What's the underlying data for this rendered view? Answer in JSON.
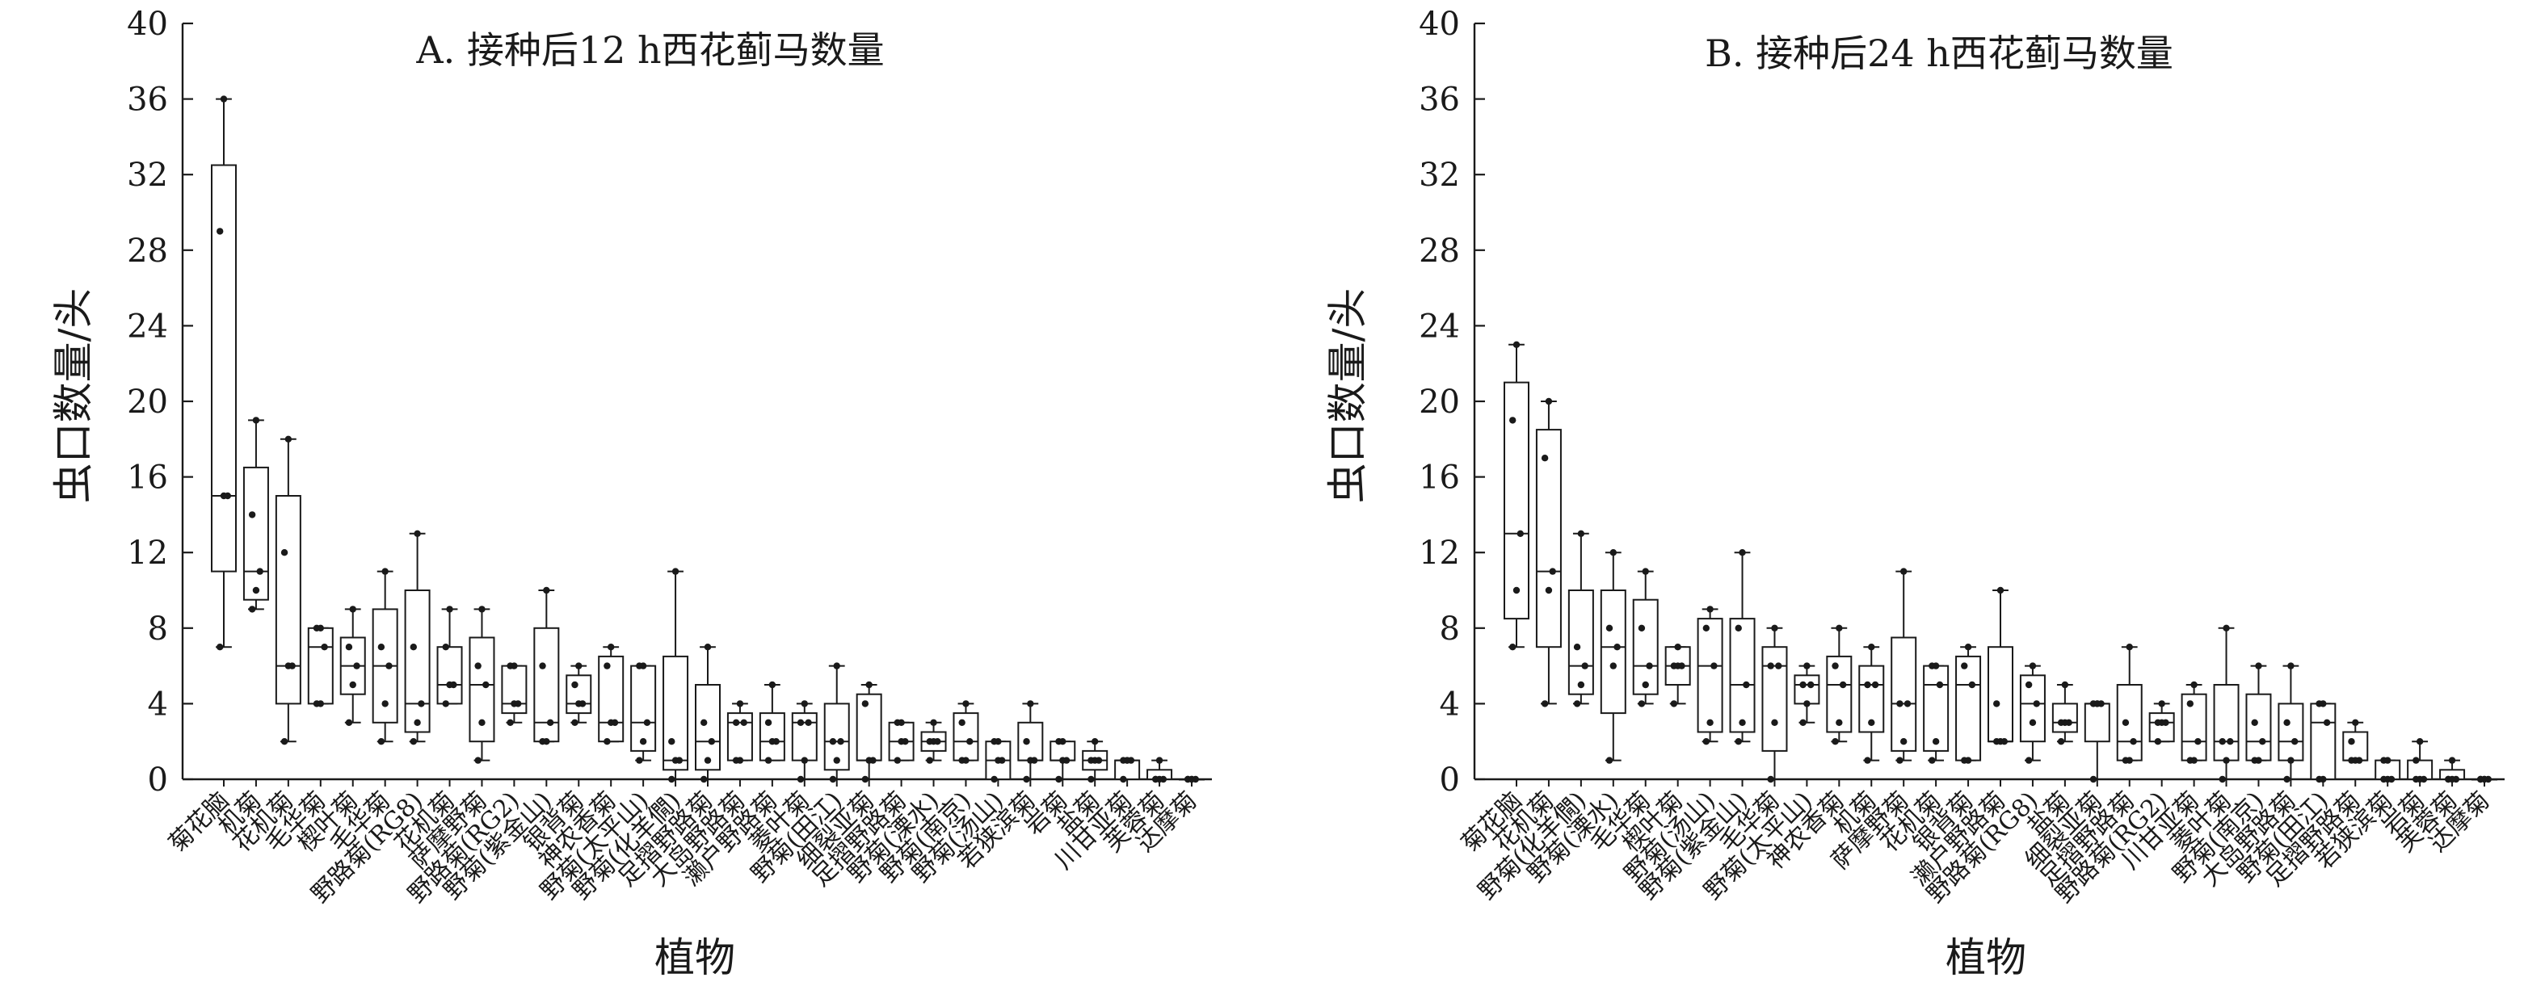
{
  "chart_data": [
    {
      "type": "box",
      "title": "A. 接种后12 h西花蓟马数量",
      "xlabel": "植物",
      "ylabel": "虫口数量/头",
      "ylim": [
        0,
        40
      ],
      "yticks": [
        0,
        4,
        8,
        12,
        16,
        20,
        24,
        28,
        32,
        36,
        40
      ],
      "grid": false,
      "categories": [
        "菊花脑",
        "机菊",
        "花机菊",
        "毛华菊",
        "楔叶菊",
        "毛华菊",
        "野路菊(RG8)",
        "花机菊",
        "萨摩野菊",
        "野路菊(RG2)",
        "野菊(紫金山)",
        "银背菊",
        "神农香菊",
        "野菊(太平山)",
        "野菊(化羊僩)",
        "足摺野路菊",
        "大岛野路菊",
        "濑户野路菊",
        "菱叶菊",
        "野菊(田江)",
        "细裂亚菊",
        "足摺野路菊",
        "野菊(溧水)",
        "野菊(南京)",
        "野菊(汤山)",
        "若狭滨菊",
        "岩菊",
        "盐菊",
        "川甘亚菊",
        "芙蓉菊",
        "达摩菊"
      ],
      "boxes": [
        {
          "min": 7,
          "q1": 11,
          "median": 15,
          "q3": 32.5,
          "max": 36,
          "points": [
            7,
            15,
            15,
            29,
            36
          ]
        },
        {
          "min": 9,
          "q1": 9.5,
          "median": 11,
          "q3": 16.5,
          "max": 19,
          "points": [
            9,
            10,
            11,
            14,
            19
          ]
        },
        {
          "min": 2,
          "q1": 4,
          "median": 6,
          "q3": 15,
          "max": 18,
          "points": [
            2,
            6,
            6,
            12,
            18
          ]
        },
        {
          "min": 4,
          "q1": 4,
          "median": 7,
          "q3": 8,
          "max": 8,
          "points": [
            4,
            4,
            7,
            8,
            8
          ]
        },
        {
          "min": 3,
          "q1": 4.5,
          "median": 6,
          "q3": 7.5,
          "max": 9,
          "points": [
            3,
            5,
            6,
            7,
            9
          ]
        },
        {
          "min": 2,
          "q1": 3,
          "median": 6,
          "q3": 9,
          "max": 11,
          "points": [
            2,
            4,
            6,
            7,
            11
          ]
        },
        {
          "min": 2,
          "q1": 2.5,
          "median": 4,
          "q3": 10,
          "max": 13,
          "points": [
            2,
            3,
            4,
            7,
            13
          ]
        },
        {
          "min": 4,
          "q1": 4,
          "median": 5,
          "q3": 7,
          "max": 9,
          "points": [
            4,
            5,
            5,
            7,
            9
          ]
        },
        {
          "min": 1,
          "q1": 2,
          "median": 5,
          "q3": 7.5,
          "max": 9,
          "points": [
            1,
            3,
            5,
            6,
            9
          ]
        },
        {
          "min": 3,
          "q1": 3.5,
          "median": 4,
          "q3": 6,
          "max": 6,
          "points": [
            3,
            4,
            4,
            6,
            6
          ]
        },
        {
          "min": 2,
          "q1": 2,
          "median": 3,
          "q3": 8,
          "max": 10,
          "points": [
            2,
            2,
            3,
            6,
            10
          ]
        },
        {
          "min": 3,
          "q1": 3.5,
          "median": 4,
          "q3": 5.5,
          "max": 6,
          "points": [
            3,
            4,
            4,
            5,
            6
          ]
        },
        {
          "min": 2,
          "q1": 2,
          "median": 3,
          "q3": 6.5,
          "max": 7,
          "points": [
            2,
            3,
            3,
            6,
            7
          ]
        },
        {
          "min": 1,
          "q1": 1.5,
          "median": 3,
          "q3": 6,
          "max": 6,
          "points": [
            1,
            2,
            3,
            6,
            6
          ]
        },
        {
          "min": 0,
          "q1": 0.5,
          "median": 1,
          "q3": 6.5,
          "max": 11,
          "points": [
            0,
            1,
            1,
            2,
            11
          ]
        },
        {
          "min": 0,
          "q1": 0.5,
          "median": 2,
          "q3": 5,
          "max": 7,
          "points": [
            0,
            1,
            2,
            3,
            7
          ]
        },
        {
          "min": 1,
          "q1": 1,
          "median": 3,
          "q3": 3.5,
          "max": 4,
          "points": [
            1,
            1,
            3,
            3,
            4
          ]
        },
        {
          "min": 1,
          "q1": 1,
          "median": 2,
          "q3": 3.5,
          "max": 5,
          "points": [
            1,
            2,
            2,
            3,
            5
          ]
        },
        {
          "min": 0,
          "q1": 1,
          "median": 3,
          "q3": 3.5,
          "max": 4,
          "points": [
            0,
            1,
            3,
            3,
            4
          ]
        },
        {
          "min": 0,
          "q1": 0.5,
          "median": 2,
          "q3": 4,
          "max": 6,
          "points": [
            0,
            1,
            2,
            2,
            6
          ]
        },
        {
          "min": 0,
          "q1": 1,
          "median": 1,
          "q3": 4.5,
          "max": 5,
          "points": [
            0,
            1,
            1,
            4,
            5
          ]
        },
        {
          "min": 1,
          "q1": 1,
          "median": 2,
          "q3": 3,
          "max": 3,
          "points": [
            1,
            2,
            2,
            3,
            3
          ]
        },
        {
          "min": 1,
          "q1": 1.5,
          "median": 2,
          "q3": 2.5,
          "max": 3,
          "points": [
            1,
            2,
            2,
            2,
            3
          ]
        },
        {
          "min": 1,
          "q1": 1,
          "median": 2,
          "q3": 3.5,
          "max": 4,
          "points": [
            1,
            1,
            2,
            3,
            4
          ]
        },
        {
          "min": 0,
          "q1": 0,
          "median": 1,
          "q3": 2,
          "max": 2,
          "points": [
            0,
            1,
            1,
            2,
            2
          ]
        },
        {
          "min": 0,
          "q1": 1,
          "median": 1,
          "q3": 3,
          "max": 4,
          "points": [
            0,
            1,
            1,
            2,
            4
          ]
        },
        {
          "min": 0,
          "q1": 1,
          "median": 1,
          "q3": 2,
          "max": 2,
          "points": [
            0,
            1,
            1,
            2,
            2
          ]
        },
        {
          "min": 0,
          "q1": 0.5,
          "median": 1,
          "q3": 1.5,
          "max": 2,
          "points": [
            0,
            1,
            1,
            1,
            2
          ]
        },
        {
          "min": 0,
          "q1": 0,
          "median": 1,
          "q3": 1,
          "max": 1,
          "points": [
            0,
            1,
            1,
            1,
            1
          ]
        },
        {
          "min": 0,
          "q1": 0,
          "median": 0,
          "q3": 0.5,
          "max": 1,
          "points": [
            0,
            0,
            0,
            0,
            1
          ]
        },
        {
          "min": 0,
          "q1": 0,
          "median": 0,
          "q3": 0,
          "max": 0,
          "points": [
            0,
            0,
            0,
            0,
            0
          ]
        }
      ]
    },
    {
      "type": "box",
      "title": "B. 接种后24 h西花蓟马数量",
      "xlabel": "植物",
      "ylabel": "虫口数量/头",
      "ylim": [
        0,
        40
      ],
      "yticks": [
        0,
        4,
        8,
        12,
        16,
        20,
        24,
        28,
        32,
        36,
        40
      ],
      "grid": false,
      "categories": [
        "菊花脑",
        "花机菊",
        "野菊(化羊僩)",
        "野菊(溧水)",
        "毛华菊",
        "楔叶菊",
        "野菊(汤山)",
        "野菊(紫金山)",
        "毛华菊",
        "野菊(太平山)",
        "神农香菊",
        "机菊",
        "萨摩野菊",
        "花机菊",
        "银背菊",
        "濑户野路菊",
        "野路菊(RG8)",
        "盐菊",
        "细裂亚菊",
        "足摺野路菊",
        "野路菊(RG2)",
        "川甘亚菊",
        "菱叶菊",
        "野菊(南京)",
        "大岛野路菊",
        "野菊(田江)",
        "足摺野路菊",
        "若狭滨菊",
        "岩菊",
        "芙蓉菊",
        "达摩菊"
      ],
      "boxes": [
        {
          "min": 7,
          "q1": 8.5,
          "median": 13,
          "q3": 21,
          "max": 23,
          "points": [
            7,
            10,
            13,
            19,
            23
          ]
        },
        {
          "min": 4,
          "q1": 7,
          "median": 11,
          "q3": 18.5,
          "max": 20,
          "points": [
            4,
            10,
            11,
            17,
            20
          ]
        },
        {
          "min": 4,
          "q1": 4.5,
          "median": 6,
          "q3": 10,
          "max": 13,
          "points": [
            4,
            5,
            6,
            7,
            13
          ]
        },
        {
          "min": 1,
          "q1": 3.5,
          "median": 7,
          "q3": 10,
          "max": 12,
          "points": [
            1,
            6,
            7,
            8,
            12
          ]
        },
        {
          "min": 4,
          "q1": 4.5,
          "median": 6,
          "q3": 9.5,
          "max": 11,
          "points": [
            4,
            5,
            6,
            8,
            11
          ]
        },
        {
          "min": 4,
          "q1": 5,
          "median": 6,
          "q3": 7,
          "max": 7,
          "points": [
            4,
            6,
            6,
            6,
            7
          ]
        },
        {
          "min": 2,
          "q1": 2.5,
          "median": 6,
          "q3": 8.5,
          "max": 9,
          "points": [
            2,
            3,
            6,
            8,
            9
          ]
        },
        {
          "min": 2,
          "q1": 2.5,
          "median": 5,
          "q3": 8.5,
          "max": 12,
          "points": [
            2,
            3,
            5,
            8,
            12
          ]
        },
        {
          "min": 0,
          "q1": 1.5,
          "median": 6,
          "q3": 7,
          "max": 8,
          "points": [
            0,
            3,
            6,
            6,
            8
          ]
        },
        {
          "min": 3,
          "q1": 4,
          "median": 5,
          "q3": 5.5,
          "max": 6,
          "points": [
            3,
            4,
            5,
            5,
            6
          ]
        },
        {
          "min": 2,
          "q1": 2.5,
          "median": 5,
          "q3": 6.5,
          "max": 8,
          "points": [
            2,
            3,
            5,
            6,
            8
          ]
        },
        {
          "min": 1,
          "q1": 2.5,
          "median": 5,
          "q3": 6,
          "max": 7,
          "points": [
            1,
            3,
            5,
            5,
            7
          ]
        },
        {
          "min": 1,
          "q1": 1.5,
          "median": 4,
          "q3": 7.5,
          "max": 11,
          "points": [
            1,
            2,
            4,
            4,
            11
          ]
        },
        {
          "min": 1,
          "q1": 1.5,
          "median": 5,
          "q3": 6,
          "max": 6,
          "points": [
            1,
            2,
            5,
            6,
            6
          ]
        },
        {
          "min": 1,
          "q1": 1,
          "median": 5,
          "q3": 6.5,
          "max": 7,
          "points": [
            1,
            1,
            5,
            6,
            7
          ]
        },
        {
          "min": 2,
          "q1": 2,
          "median": 2,
          "q3": 7,
          "max": 10,
          "points": [
            2,
            2,
            2,
            4,
            10
          ]
        },
        {
          "min": 1,
          "q1": 2,
          "median": 4,
          "q3": 5.5,
          "max": 6,
          "points": [
            1,
            3,
            4,
            5,
            6
          ]
        },
        {
          "min": 2,
          "q1": 2.5,
          "median": 3,
          "q3": 4,
          "max": 5,
          "points": [
            2,
            3,
            3,
            3,
            5
          ]
        },
        {
          "min": 0,
          "q1": 2,
          "median": 4,
          "q3": 4,
          "max": 4,
          "points": [
            0,
            4,
            4,
            4,
            4
          ]
        },
        {
          "min": 1,
          "q1": 1,
          "median": 2,
          "q3": 5,
          "max": 7,
          "points": [
            1,
            1,
            2,
            3,
            7
          ]
        },
        {
          "min": 2,
          "q1": 2,
          "median": 3,
          "q3": 3.5,
          "max": 4,
          "points": [
            2,
            3,
            3,
            3,
            4
          ]
        },
        {
          "min": 1,
          "q1": 1,
          "median": 2,
          "q3": 4.5,
          "max": 5,
          "points": [
            1,
            1,
            2,
            4,
            5
          ]
        },
        {
          "min": 0,
          "q1": 1,
          "median": 2,
          "q3": 5,
          "max": 8,
          "points": [
            0,
            1,
            2,
            2,
            8
          ]
        },
        {
          "min": 1,
          "q1": 1,
          "median": 2,
          "q3": 4.5,
          "max": 6,
          "points": [
            1,
            1,
            2,
            3,
            6
          ]
        },
        {
          "min": 0,
          "q1": 1,
          "median": 2,
          "q3": 4,
          "max": 6,
          "points": [
            0,
            1,
            2,
            3,
            6
          ]
        },
        {
          "min": 0,
          "q1": 0,
          "median": 3,
          "q3": 4,
          "max": 4,
          "points": [
            0,
            0,
            3,
            4,
            4
          ]
        },
        {
          "min": 1,
          "q1": 1,
          "median": 1,
          "q3": 2.5,
          "max": 3,
          "points": [
            1,
            1,
            1,
            2,
            3
          ]
        },
        {
          "min": 0,
          "q1": 0,
          "median": 0,
          "q3": 1,
          "max": 1,
          "points": [
            0,
            0,
            0,
            1,
            1
          ]
        },
        {
          "min": 0,
          "q1": 0,
          "median": 0,
          "q3": 1,
          "max": 2,
          "points": [
            0,
            0,
            0,
            1,
            2
          ]
        },
        {
          "min": 0,
          "q1": 0,
          "median": 0,
          "q3": 0.5,
          "max": 1,
          "points": [
            0,
            0,
            0,
            0,
            1
          ]
        },
        {
          "min": 0,
          "q1": 0,
          "median": 0,
          "q3": 0,
          "max": 0,
          "points": [
            0,
            0,
            0,
            0,
            0
          ]
        }
      ]
    }
  ]
}
